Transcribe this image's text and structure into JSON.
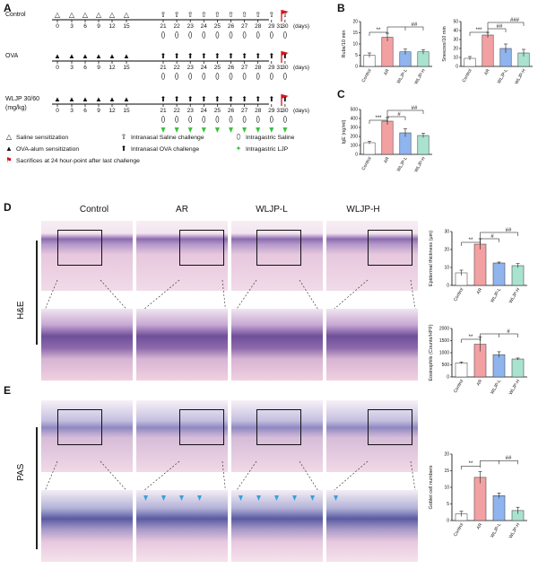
{
  "panels": {
    "A": "A",
    "B": "B",
    "C": "C",
    "D": "D",
    "E": "E"
  },
  "timeline": {
    "rows": [
      {
        "name": "Control",
        "symbol": "△",
        "days": [
          "0",
          "3",
          "6",
          "9",
          "12",
          "15"
        ],
        "challenge": "⇧",
        "gavage": "⬯"
      },
      {
        "name": "OVA",
        "symbol": "▲",
        "days": [
          "0",
          "3",
          "6",
          "9",
          "12",
          "15"
        ],
        "challenge": "⬆",
        "gavage": "⬯"
      },
      {
        "name": "WLJP 30/60",
        "subname": "(mg/kg)",
        "symbol": "▲",
        "days": [
          "0",
          "3",
          "6",
          "9",
          "12",
          "15"
        ],
        "challenge": "⬆",
        "gavage": "⬯"
      }
    ],
    "challenge_days": [
      "21",
      "22",
      "23",
      "24",
      "25",
      "26",
      "27",
      "28",
      "29",
      "30"
    ],
    "end_day": "31",
    "unit": "(days)",
    "legend": [
      {
        "icon": "△",
        "text": "Saline sensitization"
      },
      {
        "icon": "⇧",
        "text": "Intranasal Saline challenge"
      },
      {
        "icon": "⬯",
        "text": "Intragastric Saline"
      },
      {
        "icon": "▲",
        "text": "OVA-alum sensitization"
      },
      {
        "icon": "⬆",
        "text": "Intranasal OVA challenge"
      },
      {
        "icon": "✦",
        "text": "Intragastric LJP"
      },
      {
        "icon": "⚑",
        "text": "Sacrifices at 24 hour-point after last challenge"
      }
    ]
  },
  "columns": [
    "Control",
    "AR",
    "WLJP-L",
    "WLJP-H"
  ],
  "rows_labels": {
    "he": "H&E",
    "pas": "PAS"
  },
  "colors": {
    "control": "#ffffff",
    "ar": "#f3a0a3",
    "wljp_l": "#8fb4ee",
    "wljp_h": "#a9e3cf",
    "flag": "#d9141c",
    "ljp": "#3fbf3f",
    "arrow": "#3aa0d8"
  },
  "chart_data": [
    {
      "id": "rubs",
      "type": "bar",
      "categories": [
        "Control",
        "AR",
        "WLJP-L",
        "WLJP-H"
      ],
      "values": [
        5,
        13,
        6.5,
        6.5
      ],
      "errors": [
        1,
        1.8,
        1.2,
        1
      ],
      "ylabel": "Rubs/10 min",
      "ylim": [
        0,
        20
      ],
      "yticks": [
        "0",
        "5",
        "10",
        "15",
        "20"
      ],
      "sig": [
        {
          "label": "**"
        },
        {
          "label": "##"
        }
      ]
    },
    {
      "id": "sneezes",
      "type": "bar",
      "categories": [
        "Control",
        "AR",
        "WLJP-L",
        "WLJP-H"
      ],
      "values": [
        9,
        35,
        20,
        15
      ],
      "errors": [
        2,
        3,
        5,
        4
      ],
      "ylabel": "Sneezes/10 min",
      "ylim": [
        0,
        50
      ],
      "yticks": [
        "0",
        "10",
        "20",
        "30",
        "40",
        "50"
      ],
      "sig": [
        {
          "label": "***"
        },
        {
          "label": "##"
        },
        {
          "label": "###"
        }
      ]
    },
    {
      "id": "ige",
      "type": "bar",
      "categories": [
        "Control",
        "AR",
        "WLJP-L",
        "WLJP-H"
      ],
      "values": [
        130,
        370,
        240,
        210
      ],
      "errors": [
        15,
        40,
        45,
        25
      ],
      "ylabel": "IgE (ng/ml)",
      "ylim": [
        0,
        500
      ],
      "yticks": [
        "0",
        "100",
        "200",
        "300",
        "400",
        "500"
      ],
      "sig": [
        {
          "label": "***"
        },
        {
          "label": "#"
        },
        {
          "label": "##"
        }
      ]
    },
    {
      "id": "epidermal",
      "type": "bar",
      "categories": [
        "Control",
        "AR",
        "WLJP-L",
        "WLJP-H"
      ],
      "values": [
        7,
        23,
        12.5,
        11
      ],
      "errors": [
        1.5,
        3,
        0.5,
        1.2
      ],
      "ylabel": "Epidermal thickness (μm)",
      "ylim": [
        0,
        30
      ],
      "yticks": [
        "0",
        "10",
        "20",
        "30"
      ],
      "sig": [
        {
          "label": "**"
        },
        {
          "label": "#"
        },
        {
          "label": "##"
        }
      ]
    },
    {
      "id": "eosinophils",
      "type": "bar",
      "categories": [
        "Control",
        "AR",
        "WLJP-L",
        "WLJP-H"
      ],
      "values": [
        580,
        1350,
        920,
        740
      ],
      "errors": [
        40,
        300,
        120,
        40
      ],
      "ylabel": "Eosinophils (Counts/HPF)",
      "ylim": [
        0,
        2000
      ],
      "yticks": [
        "0",
        "500",
        "1000",
        "1500",
        "2000"
      ],
      "sig": [
        {
          "label": "**"
        },
        {
          "label": "#"
        }
      ]
    },
    {
      "id": "goblet",
      "type": "bar",
      "categories": [
        "Control",
        "AR",
        "WLJP-L",
        "WLJP-H"
      ],
      "values": [
        2,
        13,
        7.5,
        3
      ],
      "errors": [
        0.8,
        1.8,
        0.8,
        1
      ],
      "ylabel": "Goblet cell numbers",
      "ylim": [
        0,
        20
      ],
      "yticks": [
        "0",
        "5",
        "10",
        "15",
        "20"
      ],
      "sig": [
        {
          "label": "**"
        },
        {
          "label": "##"
        }
      ]
    }
  ]
}
